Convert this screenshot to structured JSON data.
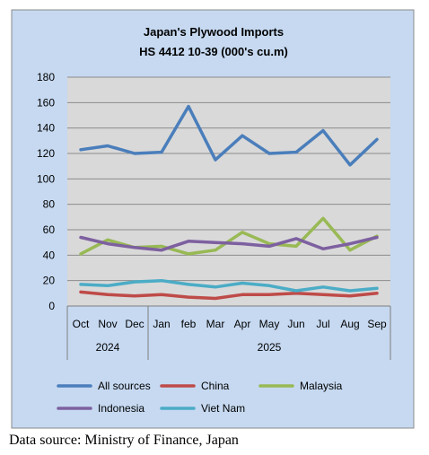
{
  "chart_data": {
    "type": "line",
    "title": [
      "Japan's Plywood Imports",
      "HS 4412 10-39  (000's cu.m)"
    ],
    "categories": [
      "Oct",
      "Nov",
      "Dec",
      "Jan",
      "feb",
      "Mar",
      "Apr",
      "May",
      "Jun",
      "Jul",
      "Aug",
      "Sep"
    ],
    "year_groups": [
      {
        "label": "2024",
        "count": 3
      },
      {
        "label": "2025",
        "count": 9
      }
    ],
    "y_ticks": [
      "0",
      "20",
      "40",
      "60",
      "80",
      "100",
      "120",
      "140",
      "160",
      "180"
    ],
    "ylim": [
      0,
      180
    ],
    "grid": true,
    "legend_position": "bottom",
    "series": [
      {
        "name": "All sources",
        "color": "#4a7ebb",
        "values": [
          123,
          126,
          120,
          121,
          157,
          115,
          134,
          120,
          121,
          138,
          111,
          131
        ]
      },
      {
        "name": "China",
        "color": "#be4b48",
        "values": [
          11,
          9,
          8,
          9,
          7,
          6,
          9,
          9,
          10,
          9,
          8,
          10
        ]
      },
      {
        "name": "Malaysia",
        "color": "#98b954",
        "values": [
          41,
          52,
          46,
          47,
          41,
          44,
          58,
          49,
          47,
          69,
          44,
          55
        ]
      },
      {
        "name": "Indonesia",
        "color": "#7d60a0",
        "values": [
          54,
          49,
          46,
          44,
          51,
          50,
          49,
          47,
          53,
          45,
          49,
          54
        ]
      },
      {
        "name": "Viet Nam",
        "color": "#4bacc6",
        "values": [
          17,
          16,
          19,
          20,
          17,
          15,
          18,
          16,
          12,
          15,
          12,
          14
        ]
      }
    ]
  },
  "source_note": "Data source: Ministry of Finance, Japan"
}
